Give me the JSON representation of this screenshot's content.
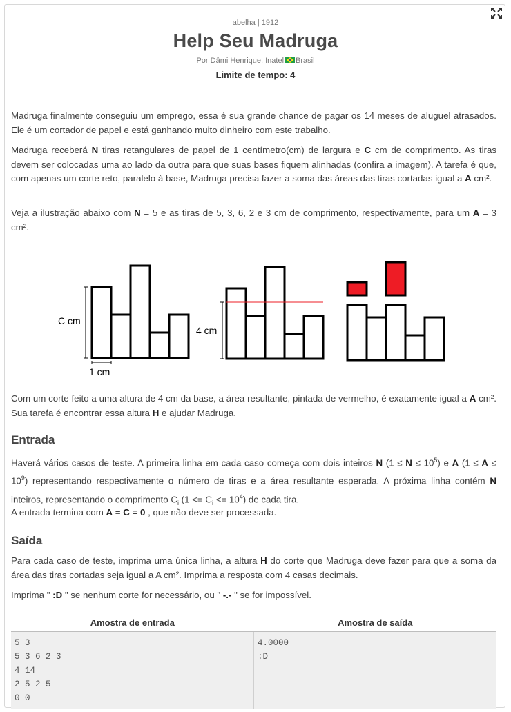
{
  "header": {
    "source": "abelha | 1912",
    "title": "Help Seu Madruga",
    "author_prefix": "Por Dâmi Henrique, Inatel",
    "country": "Brasil",
    "time_limit": "Limite de tempo: 4"
  },
  "intro": {
    "p1": "Madruga finalmente conseguiu um emprego, essa é sua grande chance de pagar os 14 meses de aluguel atrasados. Ele é um cortador de papel e está ganhando muito dinheiro com este trabalho.",
    "p2_a": "Madruga receberá ",
    "p2_N": "N",
    "p2_b": " tiras retangulares de papel de 1 centímetro(cm) de largura e ",
    "p2_C": "C",
    "p2_c": " cm de comprimento. As tiras devem ser colocadas uma ao lado da outra para que suas bases fiquem alinhadas (confira a imagem). A tarefa é que, com apenas um corte reto, paralelo à base, Madruga precisa fazer a soma das áreas das tiras cortadas igual a ",
    "p2_A": "A",
    "p2_d": " cm².",
    "p3_a": "Veja a ilustração abaixo com ",
    "p3_N": "N",
    "p3_b": " = 5 e as tiras de 5, 3, 6, 2 e 3 cm de comprimento, respectivamente, para um ",
    "p3_A": "A",
    "p3_c": " = 3 cm²."
  },
  "figure": {
    "label_c": "C cm",
    "label_1": "1 cm",
    "label_4": "4 cm",
    "strips_cm": [
      5,
      3,
      6,
      2,
      3
    ],
    "cut_height_cm": 4,
    "highlight_color": "#ee1c25"
  },
  "after_figure": {
    "a": "Com um corte feito a uma altura de 4 cm da base, a área resultante, pintada de vermelho, é exatamente igual a ",
    "A": "A",
    "b": " cm². Sua tarefa é encontrar essa altura ",
    "H": "H",
    "c": " e ajudar Madruga."
  },
  "entrada": {
    "heading": "Entrada",
    "p1_a": "Haverá vários casos de teste. A primeira linha em cada caso começa com dois inteiros ",
    "p1_N": "N",
    "p1_b": " (1 ≤ ",
    "p1_N2": "N",
    "p1_c": " ≤ 10",
    "p1_sup1": "5",
    "p1_d": ") e ",
    "p1_A": "A",
    "p1_e": " (1 ≤ ",
    "p1_A2": "A",
    "p1_f": " ≤ 10",
    "p1_sup2": "9",
    "p1_g": ") representando respectivamente o número de tiras e a área resultante esperada. A próxima linha contém ",
    "p1_N3": "N",
    "p1_h": " inteiros, representando o comprimento C",
    "p1_sub1": "i",
    "p1_i": " (1 <= C",
    "p1_sub2": "i",
    "p1_j": " <= 10",
    "p1_sup3": "4",
    "p1_k": ") de cada tira.",
    "p2_a": "A entrada termina com ",
    "p2_b": "A",
    "p2_c": " = ",
    "p2_d": "C",
    "p2_e": " = 0",
    "p2_f": " , que não deve ser processada."
  },
  "saida": {
    "heading": "Saída",
    "p1_a": "Para cada caso de teste, imprima uma única linha, a altura ",
    "p1_H": "H",
    "p1_b": " do corte que Madruga deve fazer para que a soma da área das tiras cortadas seja igual a A cm². Imprima a resposta com 4 casas decimais.",
    "p2_a": "Imprima \" ",
    "p2_b": ":D",
    "p2_c": " \" se nenhum corte for necessário, ou \" ",
    "p2_d": "-.-",
    "p2_e": " \" se for impossível."
  },
  "samples": {
    "input_header": "Amostra de entrada",
    "output_header": "Amostra de saída",
    "input": "5 3\n5 3 6 2 3\n4 14\n2 5 2 5\n0 0",
    "output": "4.0000\n:D"
  }
}
